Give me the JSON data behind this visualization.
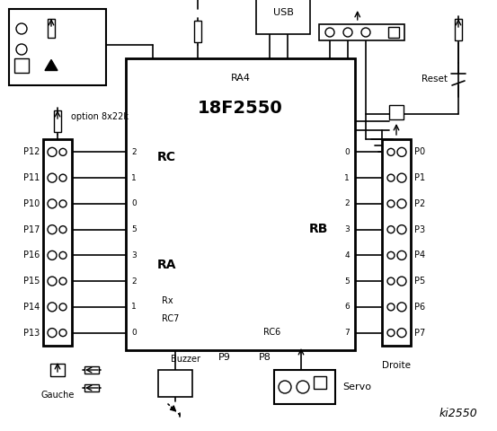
{
  "title": "ki2550",
  "bg_color": "#ffffff",
  "chip_label": "18F2550",
  "chip_sublabel": "RA4",
  "left_labels": [
    "P12",
    "P11",
    "P10",
    "P17",
    "P16",
    "P15",
    "P14",
    "P13"
  ],
  "right_labels": [
    "P0",
    "P1",
    "P2",
    "P3",
    "P4",
    "P5",
    "P6",
    "P7"
  ],
  "rc_pins": [
    "2",
    "1",
    "0",
    "5",
    "3",
    "2",
    "1",
    "0"
  ],
  "rb_pins": [
    "0",
    "1",
    "2",
    "3",
    "4",
    "5",
    "6",
    "7"
  ],
  "rc_label": "RC",
  "ra_label": "RA",
  "rb_label": "RB",
  "rx_label": "Rx",
  "rc7_label": "RC7",
  "rc6_label": "RC6",
  "option_label": "option 8x22k",
  "gauche_label": "Gauche",
  "droite_label": "Droite",
  "buzzer_label": "Buzzer",
  "p9_label": "P9",
  "p8_label": "P8",
  "servo_label": "Servo",
  "reset_label": "Reset",
  "usb_label": "USB"
}
